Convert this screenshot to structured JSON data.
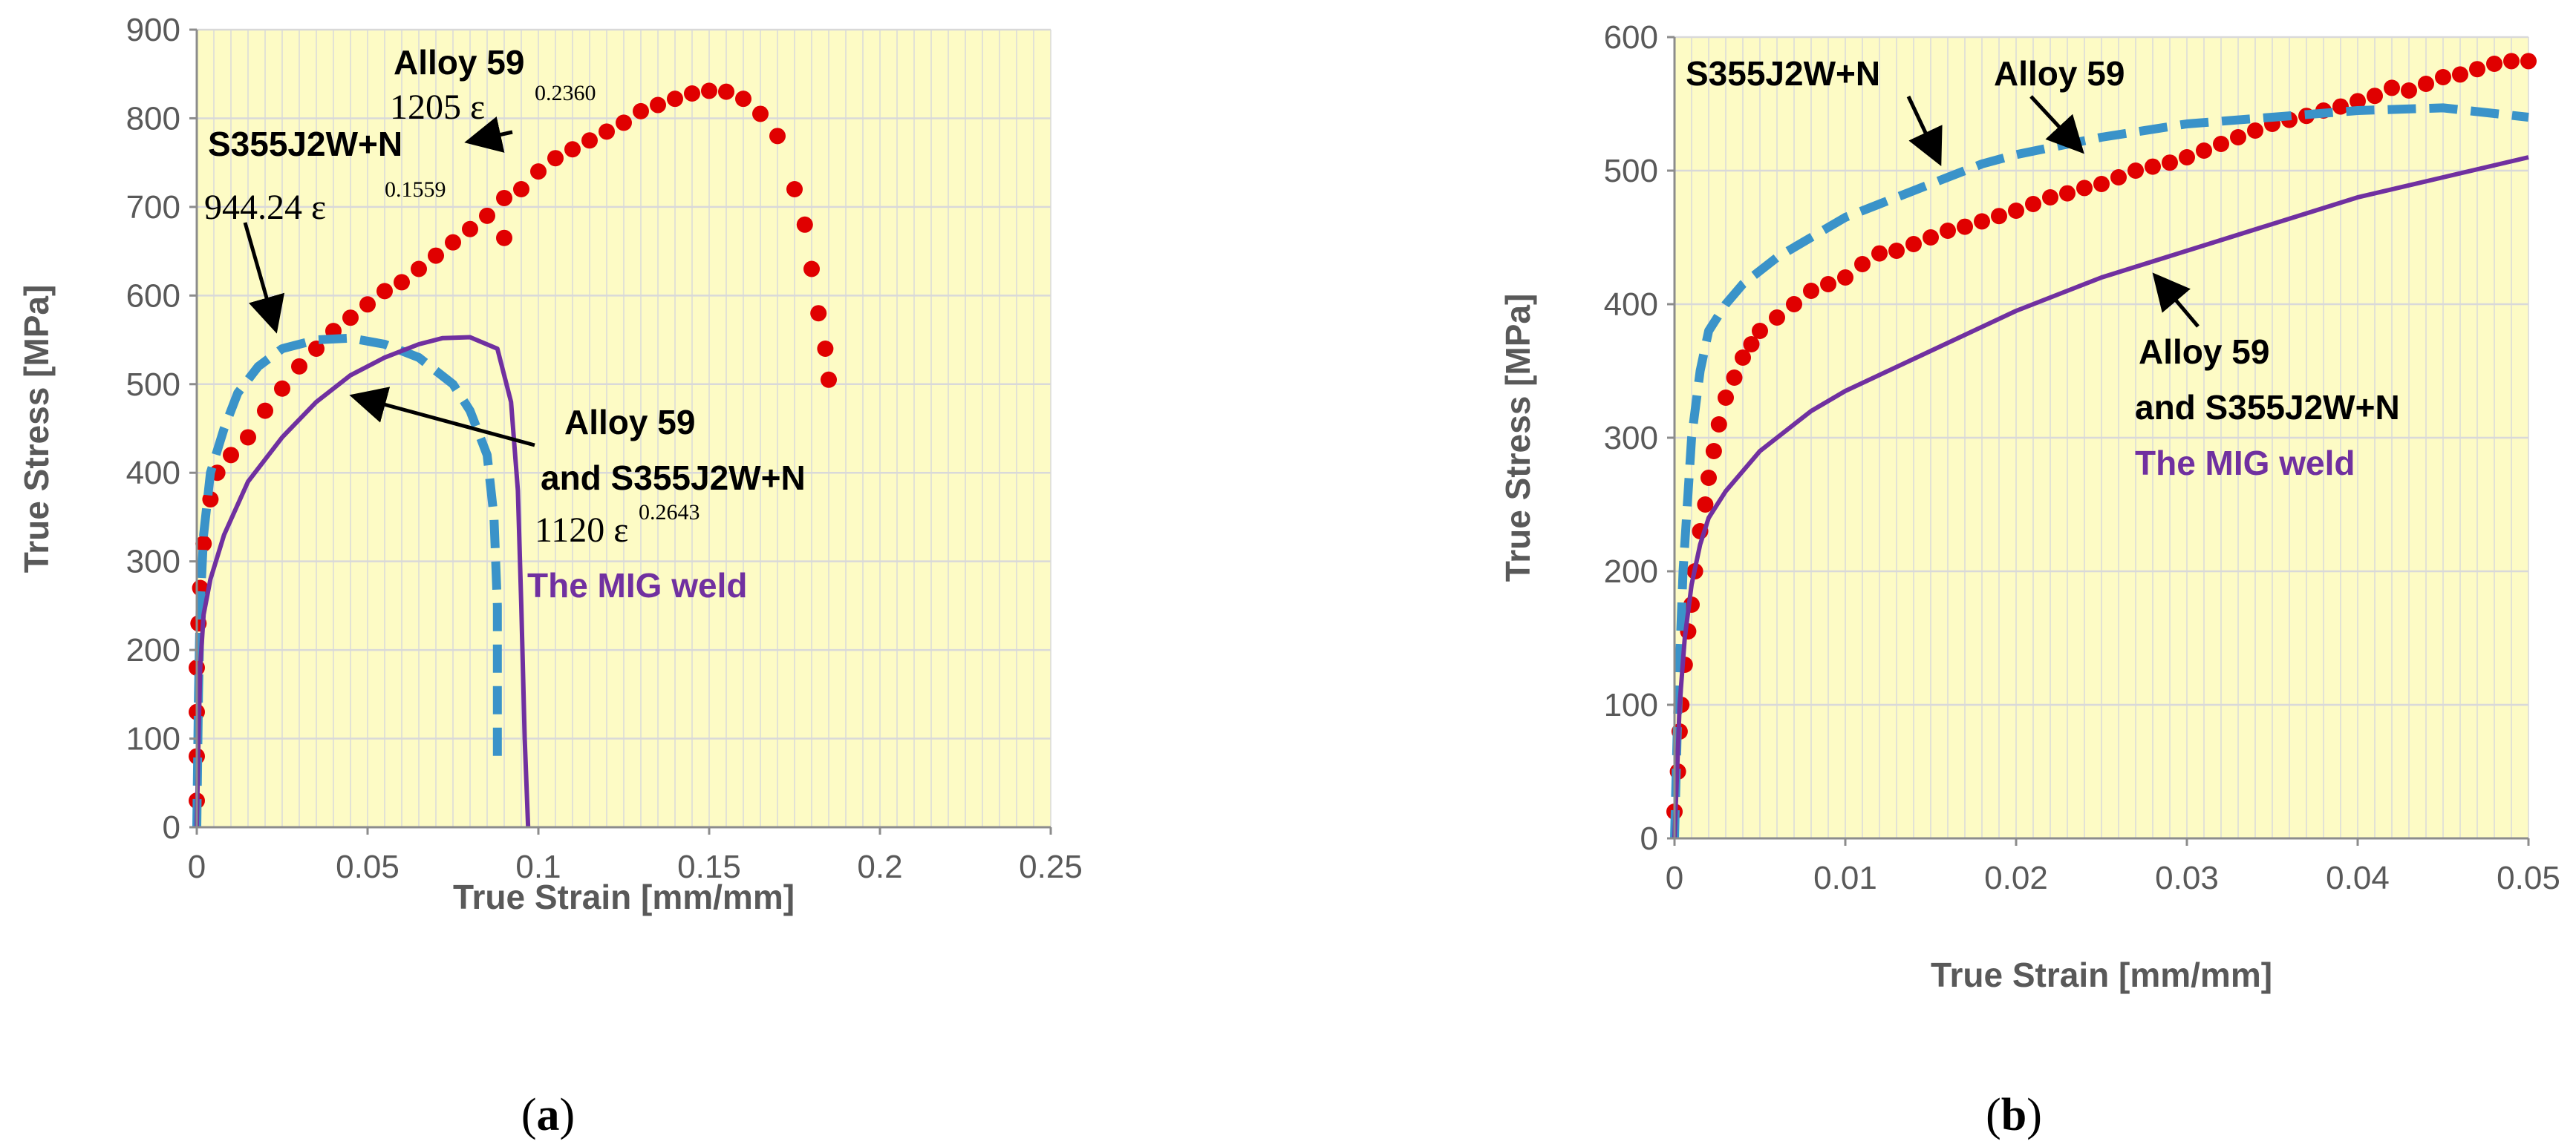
{
  "colors": {
    "plot_bg": "#fdfbc5",
    "grid": "#d9d9d9",
    "alloy59": "#e00000",
    "s355": "#3a93c9",
    "mig": "#7030a0",
    "arrow": "#000000"
  },
  "chart_data": [
    {
      "panel_label": "(a)",
      "panel_letter": "a",
      "type": "line",
      "xlabel": "True Strain [mm/mm]",
      "ylabel": "True Stress [MPa]",
      "xlim": [
        0,
        0.25
      ],
      "ylim": [
        0,
        900
      ],
      "x_ticks": [
        "0",
        "0.05",
        "0.1",
        "0.15",
        "0.2",
        "0.25"
      ],
      "y_ticks": [
        "0",
        "100",
        "200",
        "300",
        "400",
        "500",
        "600",
        "700",
        "800",
        "900"
      ],
      "grid": true,
      "series": [
        {
          "name": "Alloy 59",
          "style": "dots",
          "color_key": "alloy59",
          "points": [
            [
              0,
              30
            ],
            [
              0,
              80
            ],
            [
              0,
              130
            ],
            [
              0,
              180
            ],
            [
              0.0005,
              230
            ],
            [
              0.001,
              270
            ],
            [
              0.002,
              320
            ],
            [
              0.004,
              370
            ],
            [
              0.006,
              400
            ],
            [
              0.01,
              420
            ],
            [
              0.015,
              440
            ],
            [
              0.02,
              470
            ],
            [
              0.025,
              495
            ],
            [
              0.03,
              520
            ],
            [
              0.035,
              540
            ],
            [
              0.04,
              560
            ],
            [
              0.045,
              575
            ],
            [
              0.05,
              590
            ],
            [
              0.055,
              605
            ],
            [
              0.06,
              615
            ],
            [
              0.065,
              630
            ],
            [
              0.07,
              645
            ],
            [
              0.075,
              660
            ],
            [
              0.08,
              675
            ],
            [
              0.085,
              690
            ],
            [
              0.09,
              665
            ],
            [
              0.09,
              710
            ],
            [
              0.095,
              720
            ],
            [
              0.1,
              740
            ],
            [
              0.105,
              755
            ],
            [
              0.11,
              765
            ],
            [
              0.115,
              775
            ],
            [
              0.12,
              785
            ],
            [
              0.125,
              795
            ],
            [
              0.13,
              808
            ],
            [
              0.135,
              815
            ],
            [
              0.14,
              822
            ],
            [
              0.145,
              828
            ],
            [
              0.15,
              831
            ],
            [
              0.155,
              830
            ],
            [
              0.16,
              822
            ],
            [
              0.165,
              805
            ],
            [
              0.17,
              780
            ],
            [
              0.175,
              720
            ],
            [
              0.178,
              680
            ],
            [
              0.18,
              630
            ],
            [
              0.182,
              580
            ],
            [
              0.184,
              540
            ],
            [
              0.185,
              505
            ]
          ]
        },
        {
          "name": "S355J2W+N",
          "style": "dashed",
          "color_key": "s355",
          "points": [
            [
              0,
              0
            ],
            [
              0.0005,
              150
            ],
            [
              0.001,
              250
            ],
            [
              0.002,
              330
            ],
            [
              0.004,
              400
            ],
            [
              0.008,
              450
            ],
            [
              0.012,
              490
            ],
            [
              0.018,
              520
            ],
            [
              0.025,
              540
            ],
            [
              0.035,
              550
            ],
            [
              0.045,
              552
            ],
            [
              0.055,
              545
            ],
            [
              0.065,
              530
            ],
            [
              0.075,
              500
            ],
            [
              0.08,
              470
            ],
            [
              0.085,
              420
            ],
            [
              0.087,
              350
            ],
            [
              0.088,
              250
            ],
            [
              0.088,
              150
            ],
            [
              0.088,
              80
            ]
          ]
        },
        {
          "name": "The MIG weld",
          "style": "solid",
          "color_key": "mig",
          "points": [
            [
              0,
              0
            ],
            [
              0.0005,
              100
            ],
            [
              0.001,
              180
            ],
            [
              0.002,
              240
            ],
            [
              0.004,
              280
            ],
            [
              0.008,
              330
            ],
            [
              0.015,
              390
            ],
            [
              0.025,
              440
            ],
            [
              0.035,
              480
            ],
            [
              0.045,
              510
            ],
            [
              0.055,
              530
            ],
            [
              0.065,
              545
            ],
            [
              0.072,
              552
            ],
            [
              0.08,
              553
            ],
            [
              0.088,
              540
            ],
            [
              0.092,
              480
            ],
            [
              0.094,
              380
            ],
            [
              0.095,
              250
            ],
            [
              0.096,
              100
            ],
            [
              0.097,
              0
            ]
          ]
        }
      ],
      "annotations": {
        "alloy_title": "Alloy 59",
        "alloy_coef": "1205  ε",
        "alloy_exp": "0.2360",
        "s355_title": "S355J2W+N",
        "s355_coef": "944.24  ε",
        "s355_exp": "0.1559",
        "weld_line1": "Alloy 59",
        "weld_line2": "and S355J2W+N",
        "weld_coef": "1120  ε",
        "weld_exp": "0.2643",
        "weld_name": "The MIG weld"
      }
    },
    {
      "panel_label": "(b)",
      "panel_letter": "b",
      "type": "line",
      "xlabel": "True Strain [mm/mm]",
      "ylabel": "True Stress [MPa]",
      "xlim": [
        0,
        0.05
      ],
      "ylim": [
        0,
        600
      ],
      "x_ticks": [
        "0",
        "0.01",
        "0.02",
        "0.03",
        "0.04",
        "0.05"
      ],
      "y_ticks": [
        "0",
        "100",
        "200",
        "300",
        "400",
        "500",
        "600"
      ],
      "grid": true,
      "series": [
        {
          "name": "Alloy 59",
          "style": "dots",
          "color_key": "alloy59",
          "points": [
            [
              0,
              20
            ],
            [
              0.0002,
              50
            ],
            [
              0.0003,
              80
            ],
            [
              0.0004,
              100
            ],
            [
              0.0006,
              130
            ],
            [
              0.0008,
              155
            ],
            [
              0.001,
              175
            ],
            [
              0.0012,
              200
            ],
            [
              0.0015,
              230
            ],
            [
              0.0018,
              250
            ],
            [
              0.002,
              270
            ],
            [
              0.0023,
              290
            ],
            [
              0.0026,
              310
            ],
            [
              0.003,
              330
            ],
            [
              0.0035,
              345
            ],
            [
              0.004,
              360
            ],
            [
              0.0045,
              370
            ],
            [
              0.005,
              380
            ],
            [
              0.006,
              390
            ],
            [
              0.007,
              400
            ],
            [
              0.008,
              410
            ],
            [
              0.009,
              415
            ],
            [
              0.01,
              420
            ],
            [
              0.011,
              430
            ],
            [
              0.012,
              438
            ],
            [
              0.013,
              440
            ],
            [
              0.014,
              445
            ],
            [
              0.015,
              450
            ],
            [
              0.016,
              455
            ],
            [
              0.017,
              458
            ],
            [
              0.018,
              462
            ],
            [
              0.019,
              466
            ],
            [
              0.02,
              470
            ],
            [
              0.021,
              475
            ],
            [
              0.022,
              480
            ],
            [
              0.023,
              483
            ],
            [
              0.024,
              487
            ],
            [
              0.025,
              490
            ],
            [
              0.026,
              495
            ],
            [
              0.027,
              500
            ],
            [
              0.028,
              503
            ],
            [
              0.029,
              506
            ],
            [
              0.03,
              510
            ],
            [
              0.031,
              515
            ],
            [
              0.032,
              520
            ],
            [
              0.033,
              525
            ],
            [
              0.034,
              530
            ],
            [
              0.035,
              535
            ],
            [
              0.036,
              538
            ],
            [
              0.037,
              541
            ],
            [
              0.038,
              545
            ],
            [
              0.039,
              548
            ],
            [
              0.04,
              552
            ],
            [
              0.041,
              556
            ],
            [
              0.042,
              562
            ],
            [
              0.043,
              560
            ],
            [
              0.044,
              565
            ],
            [
              0.045,
              570
            ],
            [
              0.046,
              572
            ],
            [
              0.047,
              576
            ],
            [
              0.048,
              580
            ],
            [
              0.049,
              582
            ],
            [
              0.05,
              582
            ]
          ]
        },
        {
          "name": "S355J2W+N",
          "style": "dashed",
          "color_key": "s355",
          "points": [
            [
              0,
              0
            ],
            [
              0.0002,
              100
            ],
            [
              0.0005,
              200
            ],
            [
              0.0008,
              260
            ],
            [
              0.001,
              300
            ],
            [
              0.0015,
              350
            ],
            [
              0.002,
              380
            ],
            [
              0.003,
              400
            ],
            [
              0.004,
              415
            ],
            [
              0.006,
              435
            ],
            [
              0.008,
              450
            ],
            [
              0.01,
              465
            ],
            [
              0.012,
              475
            ],
            [
              0.015,
              490
            ],
            [
              0.018,
              505
            ],
            [
              0.02,
              512
            ],
            [
              0.025,
              525
            ],
            [
              0.03,
              535
            ],
            [
              0.035,
              540
            ],
            [
              0.04,
              545
            ],
            [
              0.045,
              547
            ],
            [
              0.05,
              540
            ]
          ]
        },
        {
          "name": "The MIG weld",
          "style": "solid",
          "color_key": "mig",
          "points": [
            [
              0,
              0
            ],
            [
              0.0003,
              100
            ],
            [
              0.0006,
              150
            ],
            [
              0.001,
              190
            ],
            [
              0.0015,
              220
            ],
            [
              0.002,
              240
            ],
            [
              0.003,
              260
            ],
            [
              0.005,
              290
            ],
            [
              0.008,
              320
            ],
            [
              0.01,
              335
            ],
            [
              0.015,
              365
            ],
            [
              0.02,
              395
            ],
            [
              0.025,
              420
            ],
            [
              0.03,
              440
            ],
            [
              0.035,
              460
            ],
            [
              0.04,
              480
            ],
            [
              0.045,
              495
            ],
            [
              0.05,
              510
            ]
          ]
        }
      ],
      "annotations": {
        "s355_title": "S355J2W+N",
        "alloy_title": "Alloy 59",
        "weld_line1": "Alloy 59",
        "weld_line2": "and S355J2W+N",
        "weld_name": "The MIG weld"
      }
    }
  ]
}
